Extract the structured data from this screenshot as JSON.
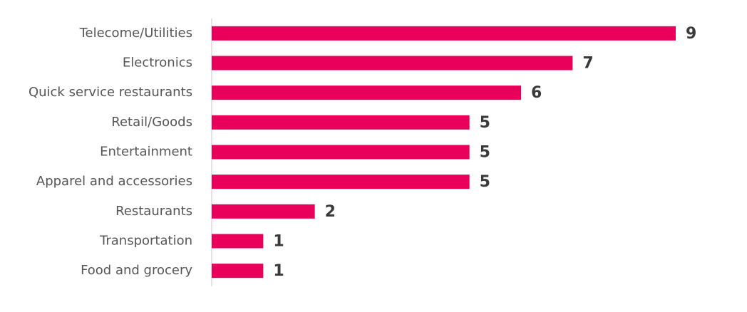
{
  "chart_data": {
    "type": "bar",
    "orientation": "horizontal",
    "categories": [
      "Telecome/Utilities",
      "Electronics",
      "Quick service restaurants",
      "Retail/Goods",
      "Entertainment",
      "Apparel and accessories",
      "Restaurants",
      "Transportation",
      "Food and grocery"
    ],
    "values": [
      9,
      7,
      6,
      5,
      5,
      5,
      2,
      1,
      1
    ],
    "color": "#e8005a",
    "xlim": [
      0,
      9
    ]
  }
}
